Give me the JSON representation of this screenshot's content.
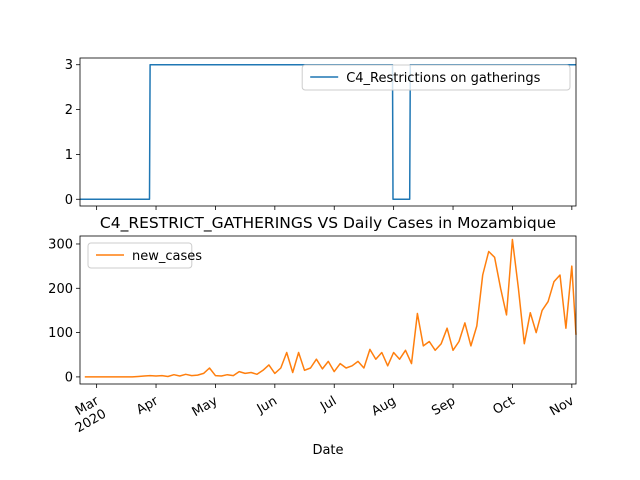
{
  "chart_data": [
    {
      "type": "line",
      "series": [
        {
          "name": "C4_Restrictions on gatherings",
          "color": "#1f77b4",
          "x": [
            2.72,
            3.89,
            3.9,
            7.98,
            7.99,
            8.27,
            8.28,
            11.07
          ],
          "values": [
            0,
            0,
            3,
            3,
            0,
            0,
            3,
            3
          ]
        }
      ],
      "xlim": [
        2.72,
        11.07
      ],
      "ylim": [
        -0.15,
        3.15
      ],
      "yticks": [
        0,
        1,
        2,
        3
      ],
      "legend": "upper right"
    },
    {
      "type": "line",
      "title": "C4_RESTRICT_GATHERINGS VS Daily Cases in Mozambique",
      "xlabel": "Date",
      "series": [
        {
          "name": "new_cases",
          "color": "#ff7f0e",
          "x": [
            2.8,
            2.9,
            3.0,
            3.1,
            3.2,
            3.3,
            3.4,
            3.5,
            3.6,
            3.7,
            3.8,
            3.9,
            4.0,
            4.1,
            4.2,
            4.3,
            4.4,
            4.5,
            4.6,
            4.7,
            4.8,
            4.9,
            5.0,
            5.1,
            5.2,
            5.3,
            5.4,
            5.5,
            5.6,
            5.7,
            5.8,
            5.9,
            6.0,
            6.1,
            6.2,
            6.3,
            6.4,
            6.5,
            6.6,
            6.7,
            6.8,
            6.9,
            7.0,
            7.1,
            7.2,
            7.3,
            7.4,
            7.5,
            7.6,
            7.7,
            7.8,
            7.9,
            8.0,
            8.1,
            8.2,
            8.3,
            8.4,
            8.5,
            8.6,
            8.7,
            8.8,
            8.9,
            9.0,
            9.1,
            9.2,
            9.3,
            9.4,
            9.5,
            9.6,
            9.7,
            9.8,
            9.9,
            10.0,
            10.1,
            10.2,
            10.3,
            10.4,
            10.5,
            10.6,
            10.7,
            10.8,
            10.9,
            11.0,
            11.07
          ],
          "values": [
            0,
            0,
            0,
            0,
            0,
            0,
            0,
            0,
            0,
            1,
            2,
            3,
            2,
            3,
            1,
            5,
            2,
            6,
            3,
            4,
            8,
            20,
            3,
            2,
            5,
            3,
            12,
            8,
            10,
            6,
            15,
            27,
            8,
            20,
            55,
            10,
            55,
            15,
            20,
            40,
            18,
            35,
            12,
            30,
            20,
            25,
            35,
            20,
            62,
            40,
            55,
            25,
            55,
            40,
            60,
            30,
            143,
            70,
            80,
            60,
            75,
            110,
            60,
            80,
            122,
            70,
            115,
            230,
            283,
            270,
            200,
            140,
            310,
            200,
            75,
            145,
            100,
            150,
            170,
            215,
            230,
            110,
            250,
            95
          ]
        }
      ],
      "xlim": [
        2.72,
        11.07
      ],
      "ylim": [
        -16,
        318
      ],
      "yticks": [
        0,
        100,
        200,
        300
      ],
      "xticks": [
        {
          "value": 3,
          "label": "Mar\n2020"
        },
        {
          "value": 4,
          "label": "Apr"
        },
        {
          "value": 5,
          "label": "May"
        },
        {
          "value": 6,
          "label": "Jun"
        },
        {
          "value": 7,
          "label": "Jul"
        },
        {
          "value": 8,
          "label": "Aug"
        },
        {
          "value": 9,
          "label": "Sep"
        },
        {
          "value": 10,
          "label": "Oct"
        },
        {
          "value": 11,
          "label": "Nov"
        }
      ],
      "legend": "upper left"
    }
  ]
}
